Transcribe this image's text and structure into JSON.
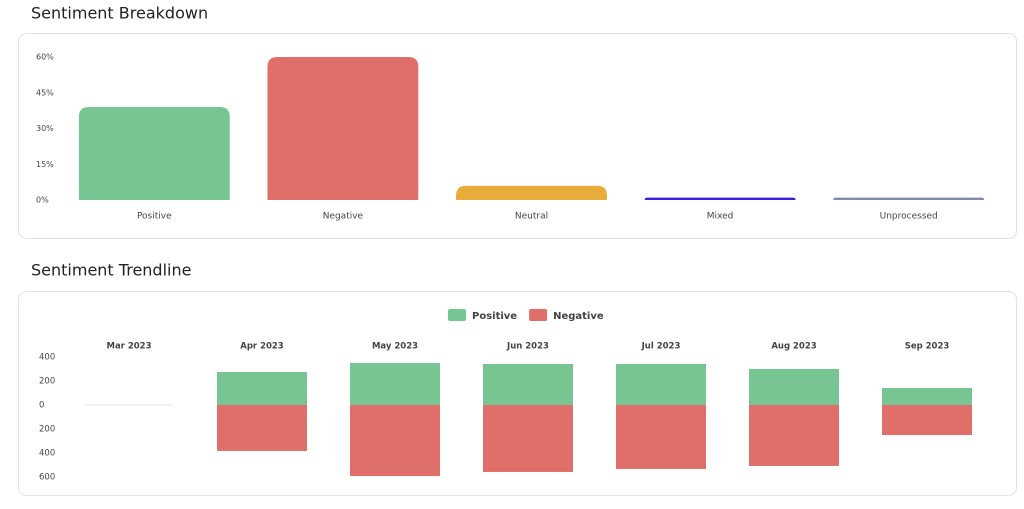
{
  "chart_data": [
    {
      "type": "bar",
      "title": "Sentiment Breakdown",
      "categories": [
        "Positive",
        "Negative",
        "Neutral",
        "Mixed",
        "Unprocessed"
      ],
      "values": [
        39,
        60,
        6,
        1,
        1
      ],
      "colors": [
        "#77c592",
        "#e06f69",
        "#e8ac3a",
        "#3b1fe0",
        "#7f8ab0"
      ],
      "ylim": [
        0,
        60
      ],
      "yticks": [
        {
          "value": 0,
          "label": "0%"
        },
        {
          "value": 15,
          "label": "15%"
        },
        {
          "value": 30,
          "label": "30%"
        },
        {
          "value": 45,
          "label": "45%"
        },
        {
          "value": 60,
          "label": "60%"
        }
      ]
    },
    {
      "type": "diverging_bar",
      "title": "Sentiment Trendline",
      "categories": [
        "Mar 2023",
        "Apr 2023",
        "May 2023",
        "Jun 2023",
        "Jul 2023",
        "Aug 2023",
        "Sep 2023"
      ],
      "series": [
        {
          "name": "Positive",
          "color": "#77c592",
          "values": [
            0,
            275,
            350,
            342,
            342,
            300,
            142
          ]
        },
        {
          "name": "Negative",
          "color": "#e06f69",
          "values": [
            0,
            -383,
            -592,
            -558,
            -533,
            -508,
            -250
          ]
        }
      ],
      "ylim": [
        -600,
        400
      ],
      "yticks": [
        {
          "value": -600,
          "label": "600"
        },
        {
          "value": -400,
          "label": "400"
        },
        {
          "value": -200,
          "label": "200"
        },
        0,
        200,
        400
      ],
      "negative_tick_color": "#d93b2b",
      "legend": "top"
    }
  ]
}
